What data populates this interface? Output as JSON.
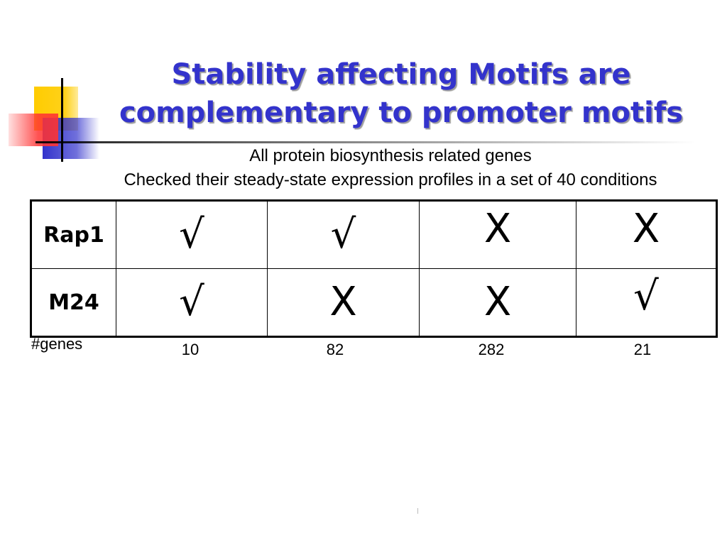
{
  "slide": {
    "title_line1": "Stability affecting Motifs are",
    "title_line2": "complementary to promoter motifs",
    "subtitle_line1": "All protein biosynthesis related genes",
    "subtitle_line2": "Checked their steady-state expression profiles in a set of 40 conditions"
  },
  "table": {
    "rows": [
      {
        "label": "Rap1",
        "cells": [
          "√",
          "√",
          "X",
          "X"
        ]
      },
      {
        "label": "M24",
        "cells": [
          "√",
          "X",
          "X",
          "√"
        ]
      }
    ],
    "counts_label": "#genes",
    "counts": [
      "10",
      "82",
      "282",
      "21"
    ]
  },
  "colors": {
    "title": "#3333cc",
    "decor_yellow": "#ffcc00",
    "decor_blue": "#3333cc",
    "decor_red": "#ff3333"
  }
}
